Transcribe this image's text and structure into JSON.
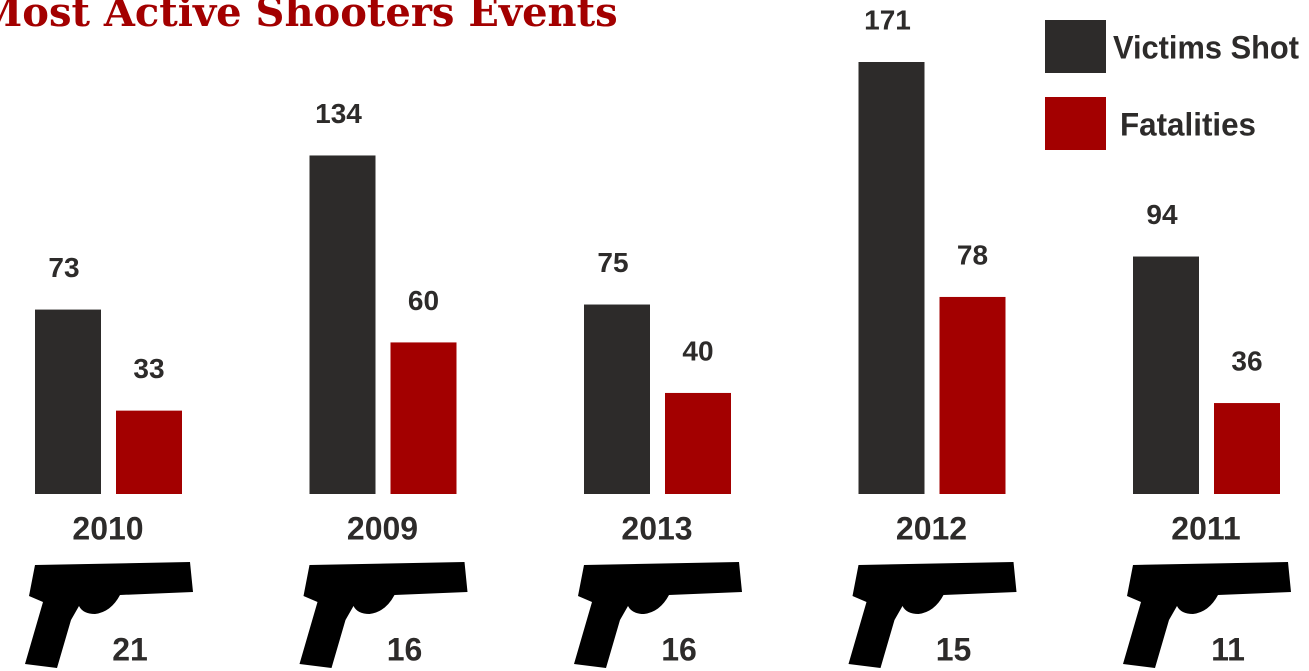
{
  "chart_data": {
    "type": "bar",
    "title": "Most Active Shooters Events",
    "categories": [
      "2010",
      "2009",
      "2013",
      "2012",
      "2011"
    ],
    "series": [
      {
        "name": "Victims Shot",
        "color": "#2d2b2a",
        "values": [
          73,
          134,
          75,
          171,
          94
        ]
      },
      {
        "name": "Fatalities",
        "color": "#a30000",
        "values": [
          33,
          60,
          40,
          78,
          36
        ]
      }
    ],
    "events": [
      21,
      16,
      16,
      15,
      11
    ],
    "ylim": [
      0,
      171
    ],
    "legend": "upper right"
  }
}
